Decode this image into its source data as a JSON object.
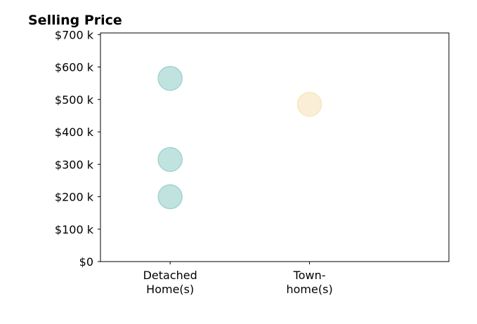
{
  "chart_data": {
    "type": "scatter",
    "title": "Selling Price",
    "xlabel": "",
    "ylabel": "",
    "categories": [
      {
        "lines": [
          "Detached",
          "Home(s)"
        ]
      },
      {
        "lines": [
          "Town-",
          "home(s)"
        ]
      }
    ],
    "xlim": [
      -0.5,
      2.0
    ],
    "ylim": [
      0,
      705
    ],
    "y_ticks": [
      {
        "value": 0,
        "label": "$0"
      },
      {
        "value": 100,
        "label": "$100 k"
      },
      {
        "value": 200,
        "label": "$200 k"
      },
      {
        "value": 300,
        "label": "$300 k"
      },
      {
        "value": 400,
        "label": "$400 k"
      },
      {
        "value": 500,
        "label": "$500 k"
      },
      {
        "value": 600,
        "label": "$600 k"
      },
      {
        "value": 700,
        "label": "$700 k"
      }
    ],
    "points": [
      {
        "category": 0,
        "value": 565,
        "color": "#9fd4d0"
      },
      {
        "category": 0,
        "value": 315,
        "color": "#9fd4d0"
      },
      {
        "category": 0,
        "value": 200,
        "color": "#9fd4d0"
      },
      {
        "category": 1,
        "value": 485,
        "color": "#f7e6c0"
      }
    ],
    "grid": false,
    "legend": "none"
  }
}
